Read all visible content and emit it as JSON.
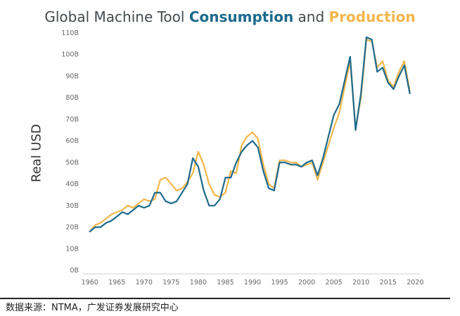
{
  "title": {
    "part1": "Global Machine Tool ",
    "part2": "Consumption",
    "part3": " and ",
    "part4": "Production",
    "consumption_color": "#1d6a8c",
    "production_color": "#f2b64a",
    "text_color": "#444a4f"
  },
  "source_note": "数据来源：NTMA，广发证券发展研究中心",
  "chart_data": {
    "type": "line",
    "title": "Global Machine Tool Consumption and Production",
    "xlabel": "",
    "ylabel": "Real USD",
    "xlim": [
      1959,
      2021
    ],
    "ylim": [
      0,
      110
    ],
    "x_ticks": [
      1960,
      1965,
      1970,
      1975,
      1980,
      1985,
      1990,
      1995,
      2000,
      2005,
      2010,
      2015,
      2020
    ],
    "y_ticks": [
      0,
      10,
      20,
      30,
      40,
      50,
      60,
      70,
      80,
      90,
      100,
      110
    ],
    "y_tick_labels": [
      "0B",
      "10B",
      "20B",
      "30B",
      "40B",
      "50B",
      "60B",
      "70B",
      "80B",
      "90B",
      "100B",
      "110B"
    ],
    "grid": false,
    "legend": "none",
    "series": [
      {
        "name": "Production",
        "color": "#f2b64a",
        "x": [
          1960,
          1961,
          1962,
          1963,
          1964,
          1965,
          1966,
          1967,
          1968,
          1969,
          1970,
          1971,
          1972,
          1973,
          1974,
          1975,
          1976,
          1977,
          1978,
          1979,
          1980,
          1981,
          1982,
          1983,
          1984,
          1985,
          1986,
          1987,
          1988,
          1989,
          1990,
          1991,
          1992,
          1993,
          1994,
          1995,
          1996,
          1997,
          1998,
          1999,
          2000,
          2001,
          2002,
          2003,
          2004,
          2005,
          2006,
          2007,
          2008,
          2009,
          2010,
          2011,
          2012,
          2013,
          2014,
          2015,
          2016,
          2017,
          2018,
          2019
        ],
        "values": [
          18,
          21,
          22,
          24,
          26,
          27,
          28,
          30,
          29,
          31,
          33,
          32,
          33,
          42,
          43,
          40,
          37,
          38,
          41,
          45,
          55,
          49,
          40,
          35,
          34,
          36,
          46,
          45,
          58,
          62,
          64,
          61,
          49,
          40,
          38,
          51,
          51,
          50,
          50,
          48,
          49,
          50,
          42,
          50,
          58,
          66,
          73,
          85,
          97,
          66,
          80,
          107,
          106,
          94,
          97,
          88,
          85,
          92,
          97,
          83
        ]
      },
      {
        "name": "Consumption",
        "color": "#1d6a8c",
        "x": [
          1960,
          1961,
          1962,
          1963,
          1964,
          1965,
          1966,
          1967,
          1968,
          1969,
          1970,
          1971,
          1972,
          1973,
          1974,
          1975,
          1976,
          1977,
          1978,
          1979,
          1980,
          1981,
          1982,
          1983,
          1984,
          1985,
          1986,
          1987,
          1988,
          1989,
          1990,
          1991,
          1992,
          1993,
          1994,
          1995,
          1996,
          1997,
          1998,
          1999,
          2000,
          2001,
          2002,
          2003,
          2004,
          2005,
          2006,
          2007,
          2008,
          2009,
          2010,
          2011,
          2012,
          2013,
          2014,
          2015,
          2016,
          2017,
          2018,
          2019
        ],
        "values": [
          18,
          20,
          20,
          22,
          23,
          25,
          27,
          26,
          28,
          30,
          29,
          30,
          36,
          36,
          32,
          31,
          32,
          36,
          40,
          52,
          48,
          37,
          30,
          30,
          33,
          43,
          43,
          50,
          55,
          58,
          60,
          57,
          46,
          38,
          37,
          50,
          50,
          49,
          49,
          48,
          50,
          51,
          44,
          52,
          62,
          72,
          77,
          88,
          99,
          65,
          82,
          108,
          107,
          92,
          94,
          87,
          84,
          90,
          95,
          82
        ]
      }
    ]
  }
}
